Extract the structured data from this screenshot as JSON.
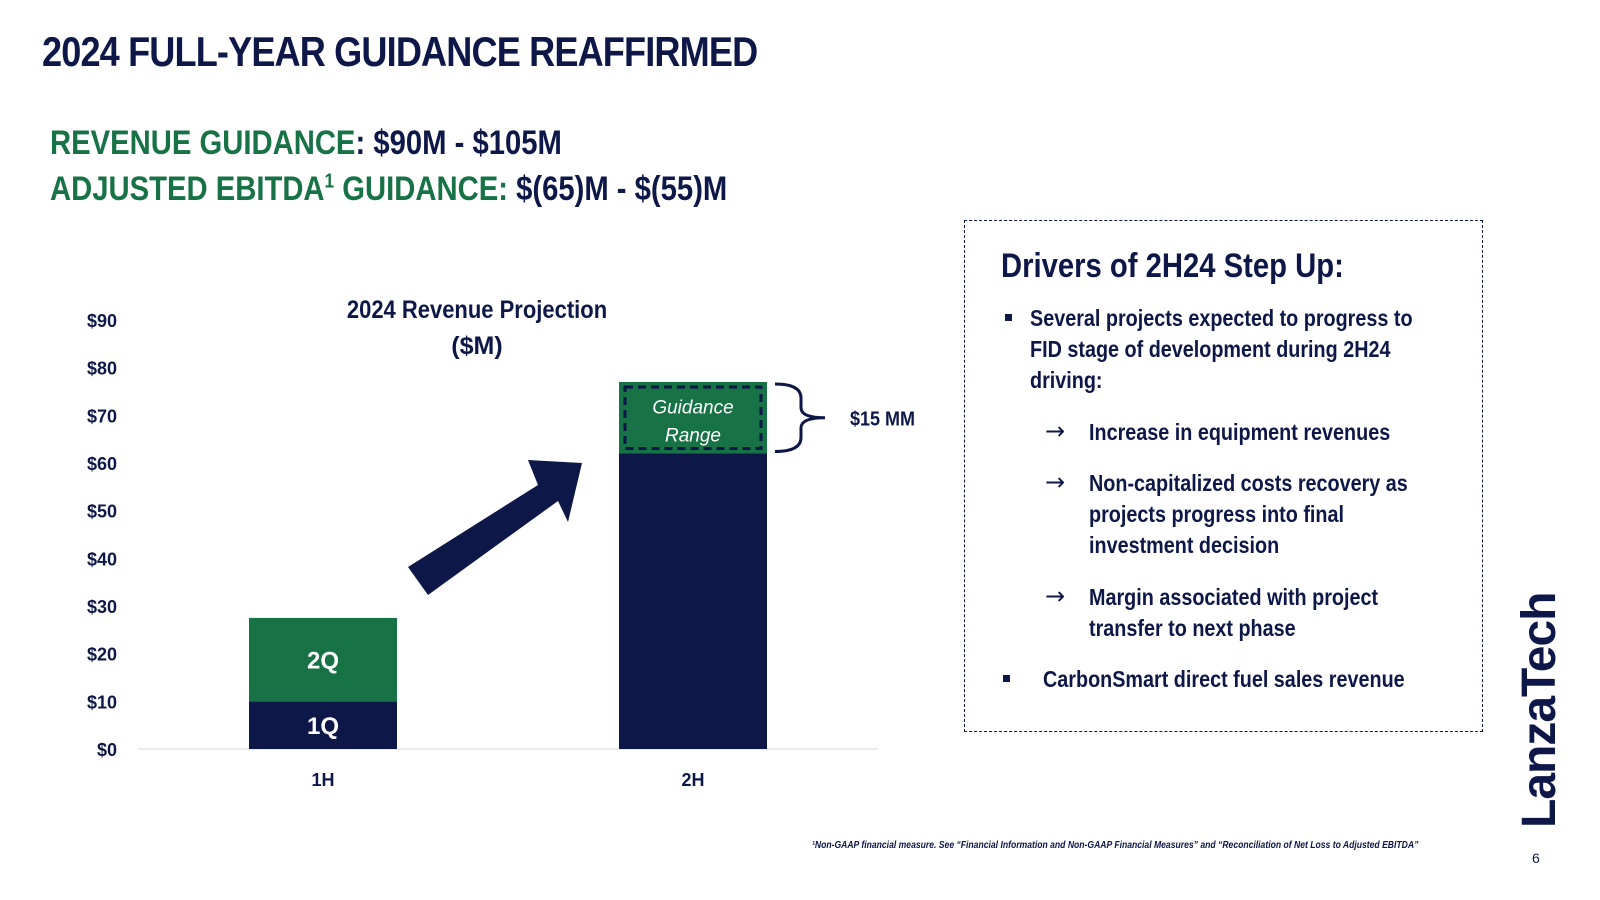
{
  "slide": {
    "title": "2024 FULL-YEAR GUIDANCE REAFFIRMED",
    "revenue_label": "REVENUE GUIDANCE",
    "revenue_colon": ":",
    "revenue_value": "$90M - $105M",
    "ebitda_label": "ADJUSTED EBITDA",
    "ebitda_sup": "1",
    "ebitda_label2": " GUIDANCE:",
    "ebitda_value": "$(65)M - $(55)M",
    "footnote": "¹Non-GAAP financial measure. See “Financial Information and Non-GAAP Financial Measures” and “Reconciliation of Net Loss to Adjusted EBITDA”",
    "page_number": "6",
    "logo": "LanzaTech"
  },
  "drivers": {
    "title": "Drivers of 2H24 Step Up:",
    "bullet1": "Several projects expected to progress to FID stage of development during 2H24 driving:",
    "sub1": "Increase in equipment revenues",
    "sub2": "Non-capitalized costs recovery as projects progress into final investment decision",
    "sub3": "Margin associated with project transfer to next phase",
    "bullet2": "CarbonSmart direct fuel sales revenue",
    "arrow": "→"
  },
  "colors": {
    "navy": "#0d1748",
    "green": "#177245"
  },
  "chart_data": {
    "type": "bar",
    "title": "2024 Revenue Projection",
    "subtitle": "($M)",
    "categories": [
      "1H",
      "2H"
    ],
    "stacked": true,
    "series": [
      {
        "name": "1Q",
        "values": [
          10,
          62
        ],
        "color": "#0d1748"
      },
      {
        "name": "2Q",
        "values": [
          17.5,
          null
        ],
        "color": "#177245"
      },
      {
        "name": "Guidance Range",
        "values": [
          null,
          15
        ],
        "color": "#177245"
      }
    ],
    "guidance_range_line1": "Guidance",
    "guidance_range_line2": "Range",
    "bracket_label": "$15 MM",
    "ylim": [
      0,
      90
    ],
    "yticks": [
      0,
      10,
      20,
      30,
      40,
      50,
      60,
      70,
      80,
      90
    ],
    "ytick_labels": [
      "$0",
      "$10",
      "$20",
      "$30",
      "$40",
      "$50",
      "$60",
      "$70",
      "$80",
      "$90"
    ],
    "grid": false,
    "legend": "none"
  }
}
